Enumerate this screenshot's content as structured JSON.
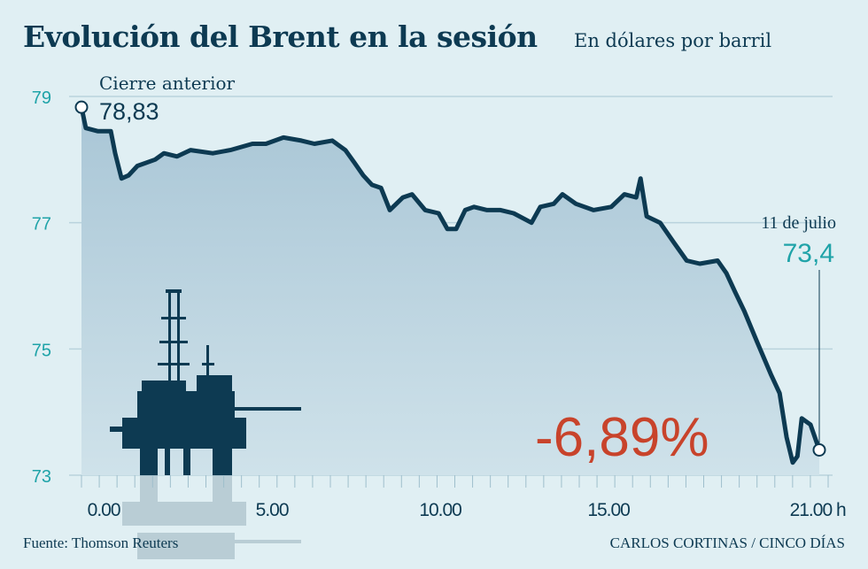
{
  "title": "Evolución del Brent en la sesión",
  "subtitle": "En dólares por barril",
  "source": "Fuente: Thomson Reuters",
  "credit": "CARLOS CORTINAS / CINCO DÍAS",
  "colors": {
    "line": "#0d3a52",
    "fill": "#a9c6d6",
    "axis_labels": "#1fa3a8",
    "change": "#c8432b",
    "background": "#e0eff3"
  },
  "icon": "oil-rig-icon",
  "chart_data": {
    "type": "area",
    "title": "Evolución del Brent en la sesión",
    "ylabel": "En dólares por barril",
    "xlim": [
      -0.66,
      21.26
    ],
    "ylim": [
      73,
      79
    ],
    "grid": true,
    "yticks": [
      {
        "value": 73,
        "label": "73"
      },
      {
        "value": 75,
        "label": "75"
      },
      {
        "value": 77,
        "label": "77"
      },
      {
        "value": 79,
        "label": "79"
      }
    ],
    "xticks": [
      {
        "value": 0,
        "label": "0.00"
      },
      {
        "value": 5,
        "label": "5.00"
      },
      {
        "value": 10,
        "label": "10.00"
      },
      {
        "value": 15,
        "label": "15.00"
      },
      {
        "value": 21,
        "label": "21.00 h"
      }
    ],
    "x": [
      -0.66,
      -0.53,
      -0.18,
      0.21,
      0.34,
      0.53,
      0.74,
      1.0,
      1.53,
      1.79,
      2.18,
      2.58,
      3.24,
      3.76,
      4.42,
      4.82,
      5.34,
      5.87,
      6.26,
      6.79,
      7.18,
      7.45,
      7.71,
      7.97,
      8.24,
      8.5,
      8.89,
      9.16,
      9.55,
      9.95,
      10.21,
      10.47,
      10.74,
      11.0,
      11.39,
      11.79,
      12.18,
      12.71,
      12.97,
      13.37,
      13.63,
      14.03,
      14.55,
      15.08,
      15.47,
      15.82,
      15.95,
      16.13,
      16.53,
      16.92,
      17.32,
      17.71,
      18.24,
      18.5,
      18.76,
      19.03,
      19.42,
      19.82,
      20.08,
      20.29,
      20.47,
      20.61,
      20.74,
      21.0,
      21.26
    ],
    "y": [
      78.83,
      78.5,
      78.45,
      78.45,
      78.1,
      77.7,
      77.75,
      77.9,
      78.0,
      78.1,
      78.05,
      78.15,
      78.1,
      78.15,
      78.25,
      78.25,
      78.35,
      78.3,
      78.25,
      78.3,
      78.15,
      77.95,
      77.75,
      77.6,
      77.55,
      77.2,
      77.4,
      77.45,
      77.2,
      77.15,
      76.9,
      76.9,
      77.2,
      77.25,
      77.2,
      77.2,
      77.15,
      77.0,
      77.25,
      77.3,
      77.45,
      77.3,
      77.2,
      77.25,
      77.45,
      77.4,
      77.7,
      77.1,
      77.0,
      76.7,
      76.4,
      76.35,
      76.4,
      76.2,
      75.9,
      75.6,
      75.1,
      74.6,
      74.3,
      73.6,
      73.2,
      73.3,
      73.9,
      73.8,
      73.4
    ],
    "annotations": {
      "start_label": "Cierre anterior",
      "start_value": "78,83",
      "end_label": "11 de julio",
      "end_value": "73,4",
      "change": "-6,89%"
    }
  }
}
